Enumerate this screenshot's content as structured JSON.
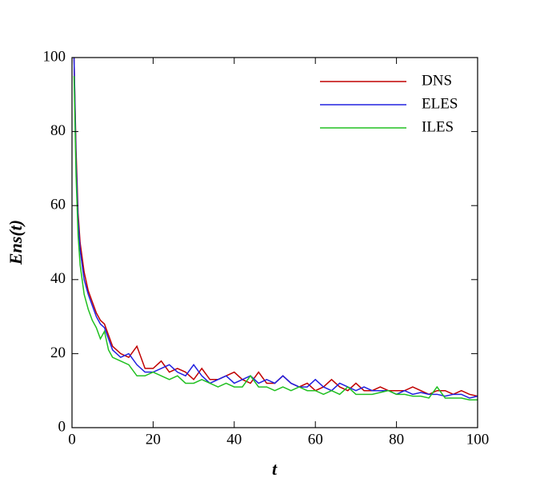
{
  "chart_data": {
    "type": "line",
    "x_label": "t",
    "y_label": "Ens(t)",
    "x": [
      0.5,
      1,
      1.5,
      2,
      3,
      4,
      5,
      6,
      7,
      8,
      9,
      10,
      12,
      14,
      16,
      18,
      20,
      22,
      24,
      26,
      28,
      30,
      32,
      34,
      36,
      38,
      40,
      42,
      44,
      46,
      48,
      50,
      52,
      54,
      56,
      58,
      60,
      62,
      64,
      66,
      68,
      70,
      72,
      74,
      76,
      78,
      80,
      82,
      84,
      86,
      88,
      90,
      92,
      94,
      96,
      98,
      100
    ],
    "series": [
      {
        "name": "DNS",
        "color": "#c00000",
        "values": [
          100,
          75,
          58,
          50,
          42,
          37,
          34,
          31,
          29,
          28,
          25,
          22,
          20,
          19,
          22,
          16,
          16,
          18,
          15,
          16,
          15,
          13,
          16,
          13,
          13,
          14,
          15,
          13,
          12,
          15,
          12,
          12,
          14,
          12,
          11,
          12,
          10,
          11,
          13,
          11,
          10,
          12,
          10,
          10,
          11,
          10,
          10,
          10,
          11,
          10,
          9,
          10,
          10,
          9,
          10,
          9,
          8.5
        ]
      },
      {
        "name": "ELES",
        "color": "#2020e0",
        "values": [
          100,
          72,
          56,
          48,
          40,
          36,
          33,
          30,
          28,
          27,
          24,
          21,
          19,
          20,
          17,
          15,
          15,
          16,
          17,
          15,
          14,
          17,
          14,
          12,
          13,
          14,
          12,
          13,
          14,
          12,
          13,
          12,
          14,
          12,
          11,
          11,
          13,
          11,
          10,
          12,
          11,
          10,
          11,
          10,
          10,
          10,
          9,
          10,
          9,
          9.5,
          9,
          9,
          8.5,
          9,
          9,
          8,
          8.5
        ]
      },
      {
        "name": "ILES",
        "color": "#20c020",
        "values": [
          95,
          68,
          52,
          44,
          36,
          32,
          29,
          27,
          24,
          26,
          21,
          19,
          18,
          17,
          14,
          14,
          15,
          14,
          13,
          14,
          12,
          12,
          13,
          12,
          11,
          12,
          11,
          11,
          14,
          11,
          11,
          10,
          11,
          10,
          11,
          10,
          10,
          9,
          10,
          9,
          11,
          9,
          9,
          9,
          9.5,
          10,
          9,
          9,
          8.5,
          8.5,
          8,
          11,
          8,
          8,
          8,
          7.5,
          7.5
        ]
      }
    ],
    "xlim": [
      0,
      100
    ],
    "xticks": [
      0,
      20,
      40,
      60,
      80,
      100
    ],
    "ylim": [
      0,
      100
    ],
    "yticks": [
      0,
      20,
      40,
      60,
      80,
      100
    ],
    "legend": "upper-right"
  }
}
